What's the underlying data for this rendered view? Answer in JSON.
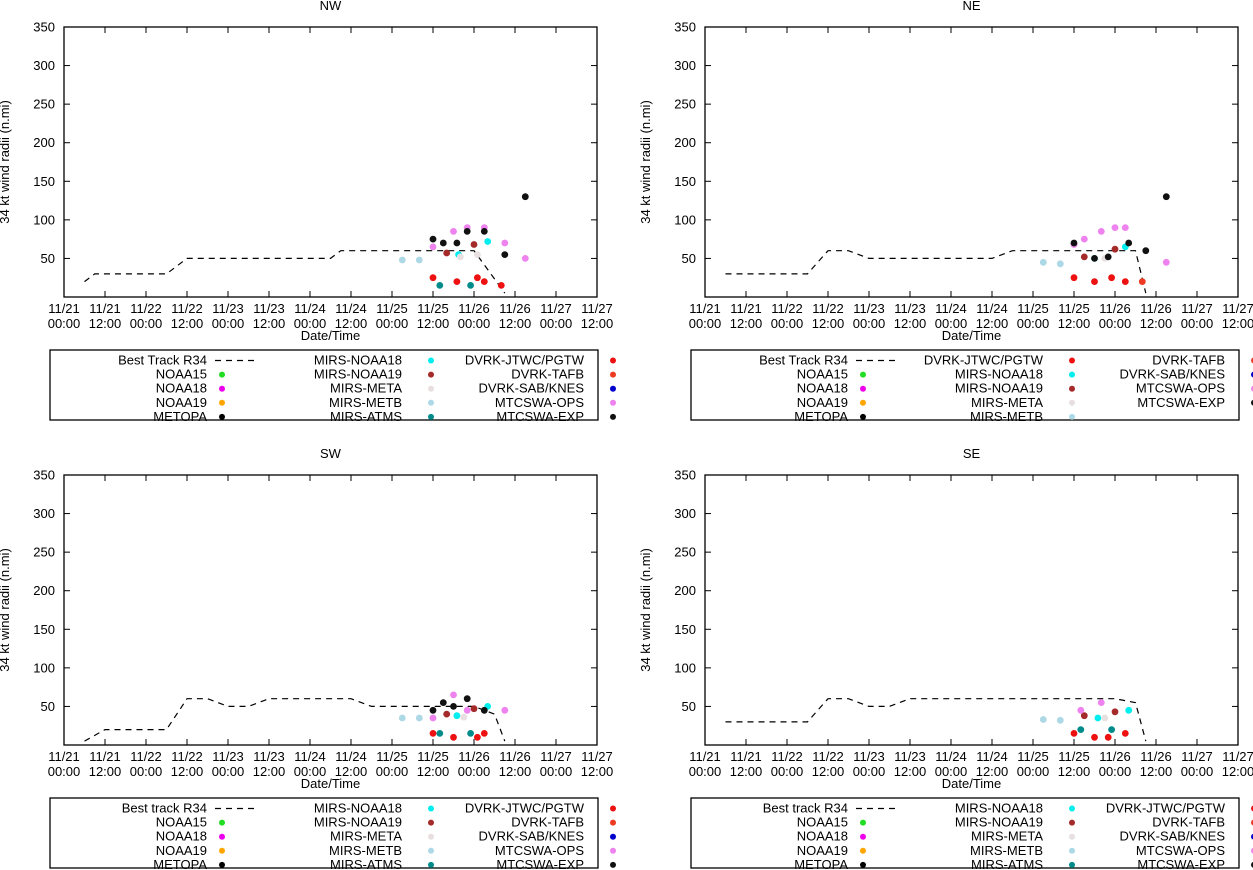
{
  "figure": {
    "ylabel": "34 kt wind radii (n.mi)",
    "xlabel": "Date/Time",
    "x_ticks": [
      {
        "date": "11/21",
        "time": "00:00"
      },
      {
        "date": "11/21",
        "time": "12:00"
      },
      {
        "date": "11/22",
        "time": "00:00"
      },
      {
        "date": "11/22",
        "time": "12:00"
      },
      {
        "date": "11/23",
        "time": "00:00"
      },
      {
        "date": "11/23",
        "time": "12:00"
      },
      {
        "date": "11/24",
        "time": "00:00"
      },
      {
        "date": "11/24",
        "time": "12:00"
      },
      {
        "date": "11/25",
        "time": "00:00"
      },
      {
        "date": "11/25",
        "time": "12:00"
      },
      {
        "date": "11/26",
        "time": "00:00"
      },
      {
        "date": "11/26",
        "time": "12:00"
      },
      {
        "date": "11/27",
        "time": "00:00"
      },
      {
        "date": "11/27",
        "time": "12:00"
      }
    ],
    "y_ticks": [
      "350",
      "300",
      "250",
      "200",
      "150",
      "100",
      "50"
    ]
  },
  "colors": {
    "NOAA15": "#22dd22",
    "NOAA18": "#ee00ee",
    "NOAA19": "#ffa500",
    "METOPA": "#000000",
    "MIRS-NOAA18": "#00eeee",
    "MIRS-NOAA19": "#a52a2a",
    "MIRS-META": "#e8e0e0",
    "MIRS-METB": "#add8e6",
    "MIRS-ATMS": "#008b8b",
    "DVRK-JTWC/PGTW": "#ee1111",
    "DVRK-TAFB": "#ee3a22",
    "DVRK-SAB/KNES": "#0000cc",
    "MTCSWA-OPS": "#ee82ee",
    "MTCSWA-EXP": "#111111"
  },
  "chart_data": [
    {
      "type": "scatter",
      "title": "NW",
      "xlabel": "Date/Time",
      "ylabel": "34 kt wind radii (n.mi)",
      "xlim": [
        0,
        156
      ],
      "ylim": [
        0,
        350
      ],
      "grid": false,
      "best_track": {
        "name": "Best Track R34",
        "x": [
          6,
          9,
          24,
          30,
          36,
          48,
          60,
          72,
          78,
          81,
          96,
          108,
          114,
          120,
          129
        ],
        "y": [
          20,
          30,
          30,
          30,
          50,
          50,
          50,
          50,
          50,
          60,
          60,
          60,
          60,
          60,
          5
        ]
      },
      "series": [
        {
          "name": "MIRS-NOAA18",
          "x": [
            115.5,
            124
          ],
          "y": [
            55,
            72
          ]
        },
        {
          "name": "MIRS-NOAA19",
          "x": [
            112,
            120
          ],
          "y": [
            57,
            68
          ]
        },
        {
          "name": "MIRS-META",
          "x": [
            116,
            121
          ],
          "y": [
            52,
            55
          ]
        },
        {
          "name": "MIRS-METB",
          "x": [
            99,
            104
          ],
          "y": [
            48,
            48
          ]
        },
        {
          "name": "MIRS-ATMS",
          "x": [
            110,
            119
          ],
          "y": [
            15,
            15
          ]
        },
        {
          "name": "DVRK-JTWC/PGTW",
          "x": [
            108,
            115,
            121,
            123,
            128
          ],
          "y": [
            25,
            20,
            25,
            20,
            15
          ]
        },
        {
          "name": "MTCSWA-OPS",
          "x": [
            108,
            114,
            118,
            123,
            129,
            135
          ],
          "y": [
            65,
            85,
            90,
            90,
            70,
            50
          ]
        },
        {
          "name": "MTCSWA-EXP",
          "x": [
            108,
            111,
            115,
            118,
            123,
            129,
            135
          ],
          "y": [
            75,
            70,
            70,
            85,
            85,
            55,
            130
          ]
        }
      ],
      "legend": {
        "position": "below",
        "best_track_label": "Best Track R34",
        "entries": [
          "NOAA15",
          "NOAA18",
          "NOAA19",
          "METOPA",
          "MIRS-NOAA18",
          "MIRS-NOAA19",
          "MIRS-META",
          "MIRS-METB",
          "MIRS-ATMS",
          "DVRK-JTWC/PGTW",
          "DVRK-TAFB",
          "DVRK-SAB/KNES",
          "MTCSWA-OPS",
          "MTCSWA-EXP"
        ]
      }
    },
    {
      "type": "scatter",
      "title": "NE",
      "xlabel": "Date/Time",
      "ylabel": "34 kt wind radii (n.mi)",
      "xlim": [
        0,
        156
      ],
      "ylim": [
        0,
        350
      ],
      "grid": false,
      "best_track": {
        "name": "Best Track R34",
        "x": [
          6,
          24,
          30,
          36,
          42,
          48,
          84,
          90,
          120,
          126,
          129
        ],
        "y": [
          30,
          30,
          30,
          60,
          60,
          50,
          50,
          60,
          60,
          60,
          5
        ]
      },
      "series": [
        {
          "name": "MIRS-NOAA18",
          "x": [
            114,
            123
          ],
          "y": [
            50,
            65
          ]
        },
        {
          "name": "MIRS-NOAA19",
          "x": [
            111,
            120
          ],
          "y": [
            52,
            62
          ]
        },
        {
          "name": "MIRS-META",
          "x": [
            117
          ],
          "y": [
            50
          ]
        },
        {
          "name": "MIRS-METB",
          "x": [
            99,
            104
          ],
          "y": [
            45,
            43
          ]
        },
        {
          "name": "DVRK-JTWC/PGTW",
          "x": [
            108,
            114,
            119,
            123
          ],
          "y": [
            25,
            20,
            25,
            20
          ]
        },
        {
          "name": "DVRK-TAFB",
          "x": [
            128
          ],
          "y": [
            20
          ]
        },
        {
          "name": "MTCSWA-OPS",
          "x": [
            108,
            111,
            116,
            120,
            123,
            135
          ],
          "y": [
            68,
            75,
            85,
            90,
            90,
            45
          ]
        },
        {
          "name": "MTCSWA-EXP",
          "x": [
            108,
            114,
            118,
            124,
            129,
            135
          ],
          "y": [
            70,
            50,
            52,
            70,
            60,
            130
          ]
        }
      ],
      "legend": {
        "position": "below",
        "best_track_label": "Best Track R34",
        "entries": [
          "NOAA15",
          "NOAA18",
          "NOAA19",
          "METOPA",
          "DVRK-JTWC/PGTW",
          "MIRS-NOAA18",
          "MIRS-NOAA19",
          "MIRS-META",
          "MIRS-METB",
          "DVRK-TAFB",
          "DVRK-SAB/KNES",
          "MTCSWA-OPS",
          "MTCSWA-EXP"
        ]
      }
    },
    {
      "type": "scatter",
      "title": "SW",
      "xlabel": "Date/Time",
      "ylabel": "34 kt wind radii (n.mi)",
      "xlim": [
        0,
        156
      ],
      "ylim": [
        0,
        350
      ],
      "grid": false,
      "best_track": {
        "name": "Best track R34",
        "x": [
          6,
          12,
          30,
          36,
          42,
          48,
          54,
          60,
          84,
          90,
          114,
          120,
          126,
          129
        ],
        "y": [
          5,
          20,
          20,
          60,
          60,
          50,
          50,
          60,
          60,
          50,
          50,
          50,
          40,
          5
        ]
      },
      "series": [
        {
          "name": "MIRS-NOAA18",
          "x": [
            115,
            124
          ],
          "y": [
            38,
            50
          ]
        },
        {
          "name": "MIRS-NOAA19",
          "x": [
            112,
            120
          ],
          "y": [
            40,
            47
          ]
        },
        {
          "name": "MIRS-META",
          "x": [
            117
          ],
          "y": [
            36
          ]
        },
        {
          "name": "MIRS-METB",
          "x": [
            99,
            104
          ],
          "y": [
            35,
            35
          ]
        },
        {
          "name": "MIRS-ATMS",
          "x": [
            110,
            119
          ],
          "y": [
            15,
            15
          ]
        },
        {
          "name": "DVRK-JTWC/PGTW",
          "x": [
            108,
            114,
            121,
            123
          ],
          "y": [
            15,
            10,
            10,
            15
          ]
        },
        {
          "name": "MTCSWA-OPS",
          "x": [
            108,
            114,
            118,
            129
          ],
          "y": [
            35,
            65,
            45,
            45
          ]
        },
        {
          "name": "MTCSWA-EXP",
          "x": [
            108,
            111,
            114,
            118,
            123
          ],
          "y": [
            45,
            55,
            50,
            60,
            45
          ]
        }
      ],
      "legend": {
        "position": "below",
        "best_track_label": "Best track R34",
        "entries": [
          "NOAA15",
          "NOAA18",
          "NOAA19",
          "METOPA",
          "MIRS-NOAA18",
          "MIRS-NOAA19",
          "MIRS-META",
          "MIRS-METB",
          "MIRS-ATMS",
          "DVRK-JTWC/PGTW",
          "DVRK-TAFB",
          "DVRK-SAB/KNES",
          "MTCSWA-OPS",
          "MTCSWA-EXP"
        ]
      }
    },
    {
      "type": "scatter",
      "title": "SE",
      "xlabel": "Date/Time",
      "ylabel": "34 kt wind radii (n.mi)",
      "xlim": [
        0,
        156
      ],
      "ylim": [
        0,
        350
      ],
      "grid": false,
      "best_track": {
        "name": "Best track R34",
        "x": [
          6,
          24,
          30,
          36,
          42,
          48,
          54,
          60,
          114,
          120,
          126,
          129
        ],
        "y": [
          30,
          30,
          30,
          60,
          60,
          50,
          50,
          60,
          60,
          60,
          55,
          5
        ]
      },
      "series": [
        {
          "name": "MIRS-NOAA18",
          "x": [
            115,
            124
          ],
          "y": [
            35,
            45
          ]
        },
        {
          "name": "MIRS-NOAA19",
          "x": [
            111,
            120
          ],
          "y": [
            38,
            43
          ]
        },
        {
          "name": "MIRS-META",
          "x": [
            117
          ],
          "y": [
            35
          ]
        },
        {
          "name": "MIRS-METB",
          "x": [
            99,
            104
          ],
          "y": [
            33,
            32
          ]
        },
        {
          "name": "MIRS-ATMS",
          "x": [
            110,
            119
          ],
          "y": [
            20,
            20
          ]
        },
        {
          "name": "DVRK-JTWC/PGTW",
          "x": [
            108,
            114,
            118,
            123
          ],
          "y": [
            15,
            10,
            10,
            15
          ]
        },
        {
          "name": "MTCSWA-OPS",
          "x": [
            110,
            116
          ],
          "y": [
            45,
            55
          ]
        }
      ],
      "legend": {
        "position": "below",
        "best_track_label": "Best track R34",
        "entries": [
          "NOAA15",
          "NOAA18",
          "NOAA19",
          "METOPA",
          "MIRS-NOAA18",
          "MIRS-NOAA19",
          "MIRS-META",
          "MIRS-METB",
          "MIRS-ATMS",
          "DVRK-JTWC/PGTW",
          "DVRK-TAFB",
          "DVRK-SAB/KNES",
          "MTCSWA-OPS",
          "MTCSWA-EXP"
        ]
      }
    }
  ]
}
